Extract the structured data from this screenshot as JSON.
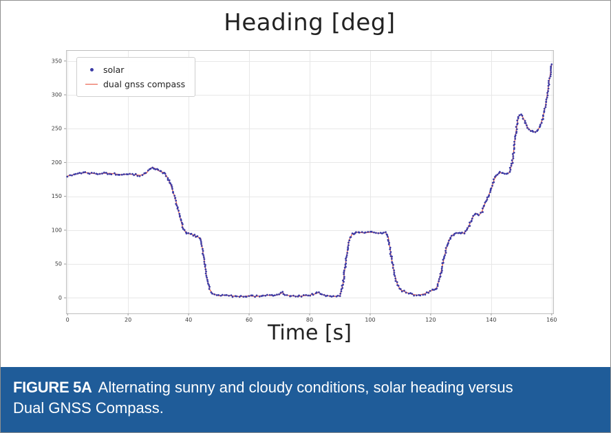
{
  "caption": {
    "tag": "FIGURE 5A",
    "text": "Alternating sunny and cloudy conditions, solar heading versus Dual GNSS Compass.",
    "bg_color": "#1f5c99",
    "text_color": "#ffffff"
  },
  "chart_data": {
    "type": "line",
    "title": "Heading [deg]",
    "xlabel": "Time [s]",
    "ylabel": "",
    "xlim": [
      -0.5,
      160.5
    ],
    "ylim": [
      -23,
      366
    ],
    "xticks": [
      0,
      20,
      40,
      60,
      80,
      100,
      120,
      140,
      160
    ],
    "yticks": [
      0,
      50,
      100,
      150,
      200,
      250,
      300,
      350
    ],
    "grid": true,
    "legend_position": "upper left",
    "x": [
      0,
      2,
      4,
      6,
      8,
      10,
      12,
      14,
      16,
      18,
      20,
      22,
      24,
      26,
      27,
      28,
      29,
      30,
      31,
      32,
      33,
      34,
      35,
      36,
      37,
      38,
      39,
      40,
      41,
      42,
      43,
      44,
      45,
      46,
      47,
      48,
      50,
      52,
      54,
      56,
      58,
      60,
      62,
      64,
      66,
      68,
      70,
      71,
      72,
      74,
      76,
      78,
      80,
      82,
      83,
      84,
      86,
      88,
      90,
      91,
      92,
      93,
      94,
      95,
      96,
      98,
      100,
      102,
      104,
      105,
      106,
      107,
      108,
      109,
      110,
      112,
      114,
      116,
      118,
      120,
      121,
      122,
      123,
      124,
      125,
      126,
      127,
      128,
      129,
      130,
      131,
      132,
      133,
      134,
      135,
      136,
      137,
      138,
      139,
      140,
      141,
      142,
      143,
      144,
      145,
      146,
      147,
      148,
      149,
      150,
      151,
      152,
      153,
      154,
      155,
      156,
      157,
      158,
      159,
      160
    ],
    "series": [
      {
        "name": "solar",
        "type": "scatter",
        "color": "#3b3ba6",
        "values": [
          180,
          182,
          184,
          185,
          184,
          183,
          184,
          184,
          183,
          182,
          183,
          182,
          181,
          184,
          190,
          193,
          191,
          188,
          186,
          185,
          178,
          168,
          155,
          140,
          122,
          105,
          97,
          95,
          94,
          92,
          90,
          88,
          60,
          30,
          12,
          6,
          3,
          4,
          3,
          2,
          2,
          3,
          2,
          3,
          4,
          3,
          5,
          8,
          4,
          3,
          2,
          3,
          4,
          6,
          8,
          5,
          3,
          2,
          3,
          20,
          55,
          85,
          94,
          96,
          97,
          96,
          97,
          96,
          95,
          97,
          90,
          60,
          35,
          20,
          12,
          8,
          5,
          4,
          6,
          10,
          12,
          15,
          30,
          50,
          70,
          85,
          92,
          95,
          96,
          95,
          96,
          100,
          110,
          120,
          125,
          122,
          128,
          140,
          150,
          160,
          175,
          182,
          185,
          184,
          183,
          185,
          200,
          240,
          268,
          271,
          262,
          252,
          247,
          245,
          246,
          252,
          265,
          285,
          315,
          345
        ]
      },
      {
        "name": "dual gnss compass",
        "type": "line",
        "color": "#e8503a",
        "values": [
          180,
          182,
          184,
          185,
          184,
          183,
          184,
          184,
          183,
          182,
          183,
          182,
          181,
          184,
          190,
          193,
          191,
          188,
          186,
          185,
          178,
          168,
          155,
          140,
          122,
          105,
          97,
          95,
          94,
          92,
          90,
          88,
          60,
          30,
          12,
          6,
          3,
          4,
          3,
          2,
          2,
          3,
          2,
          3,
          4,
          3,
          5,
          8,
          4,
          3,
          2,
          3,
          4,
          6,
          8,
          5,
          3,
          2,
          3,
          20,
          55,
          85,
          94,
          96,
          97,
          96,
          97,
          96,
          95,
          97,
          90,
          60,
          35,
          20,
          12,
          8,
          5,
          4,
          6,
          10,
          12,
          15,
          30,
          50,
          70,
          85,
          92,
          95,
          96,
          95,
          96,
          100,
          110,
          120,
          125,
          122,
          128,
          140,
          150,
          160,
          175,
          182,
          185,
          184,
          183,
          185,
          200,
          240,
          268,
          271,
          262,
          252,
          247,
          245,
          246,
          252,
          265,
          285,
          315,
          345
        ]
      }
    ]
  }
}
